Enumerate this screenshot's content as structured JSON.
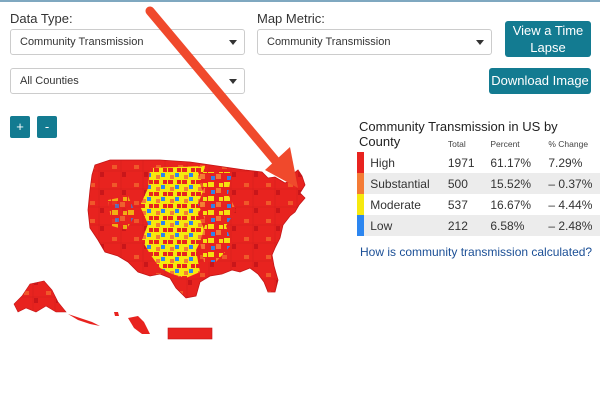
{
  "controls": {
    "data_type_label": "Data Type:",
    "data_type_value": "Community Transmission",
    "map_metric_label": "Map Metric:",
    "map_metric_value": "Community Transmission",
    "counties_value": "All Counties",
    "time_lapse_label": "View a Time Lapse",
    "download_label": "Download Image",
    "zoom_in_label": "+",
    "zoom_out_label": "-"
  },
  "legend": {
    "title": "Community Transmission in US by County",
    "headers": {
      "total": "Total",
      "percent": "Percent",
      "change": "% Change"
    },
    "rows": [
      {
        "level": "High",
        "total": "1971",
        "percent": "61.17%",
        "change": "7.29%",
        "color": "#e8231f"
      },
      {
        "level": "Substantial",
        "total": "500",
        "percent": "15.52%",
        "change": "– 0.37%",
        "color": "#f47b35"
      },
      {
        "level": "Moderate",
        "total": "537",
        "percent": "16.67%",
        "change": "– 4.44%",
        "color": "#f6e90f"
      },
      {
        "level": "Low",
        "total": "212",
        "percent": "6.58%",
        "change": "– 2.48%",
        "color": "#2c86f0"
      }
    ],
    "help_link": "How is community transmission calculated?"
  },
  "annotation": {
    "arrow_color": "#f0492c"
  }
}
